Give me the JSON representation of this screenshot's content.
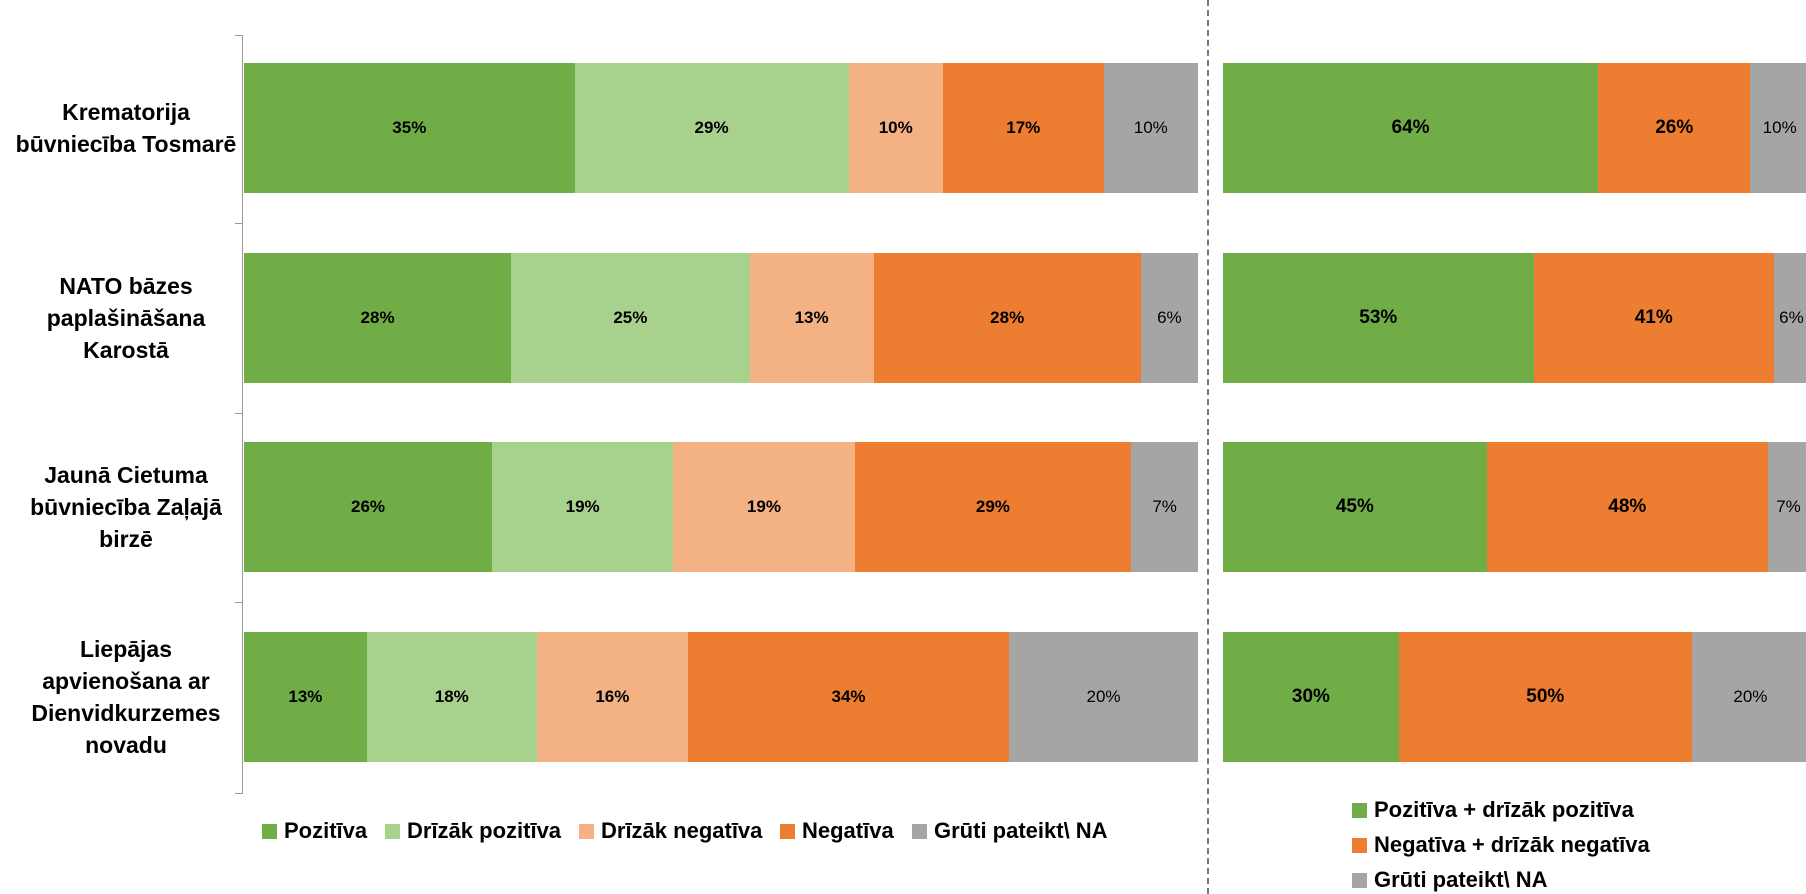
{
  "chart_data": [
    {
      "type": "bar",
      "orientation": "horizontal",
      "stacked": true,
      "legend": "bottom",
      "categories": [
        "Krematorija būvniecība Tosmarē",
        "NATO bāzes paplašināšana Karostā",
        "Jaunā Cietuma būvniecība Zaļajā birzē",
        "Liepājas apvienošana ar Dienvidkurzemes novadu"
      ],
      "series": [
        {
          "name": "Pozitīva",
          "color": "#70ad47",
          "values": [
            35,
            28,
            26,
            13
          ],
          "value_labels": [
            "35%",
            "28%",
            "26%",
            "13%"
          ]
        },
        {
          "name": "Drīzāk pozitīva",
          "color": "#a9d18e",
          "values": [
            29,
            25,
            19,
            18
          ],
          "value_labels": [
            "29%",
            "25%",
            "19%",
            "18%"
          ]
        },
        {
          "name": "Drīzāk negatīva",
          "color": "#f4b183",
          "values": [
            10,
            13,
            19,
            16
          ],
          "value_labels": [
            "10%",
            "13%",
            "19%",
            "16%"
          ]
        },
        {
          "name": "Negatīva",
          "color": "#ed7d31",
          "values": [
            17,
            28,
            29,
            34
          ],
          "value_labels": [
            "17%",
            "28%",
            "29%",
            "34%"
          ]
        },
        {
          "name": "Grūti pateikt\\ NA",
          "color": "#a5a5a5",
          "values": [
            10,
            6,
            7,
            20
          ],
          "value_labels": [
            "10%",
            "6%",
            "7%",
            "20%"
          ]
        }
      ]
    },
    {
      "type": "bar",
      "orientation": "horizontal",
      "stacked": true,
      "legend": "bottom",
      "series": [
        {
          "name": "Pozitīva + drīzāk pozitīva",
          "color": "#70ad47",
          "values": [
            64,
            53,
            45,
            30
          ],
          "value_labels": [
            "64%",
            "53%",
            "45%",
            "30%"
          ]
        },
        {
          "name": "Negatīva + drīzāk negatīva",
          "color": "#ed7d31",
          "values": [
            26,
            41,
            48,
            50
          ],
          "value_labels": [
            "26%",
            "41%",
            "48%",
            "50%"
          ]
        },
        {
          "name": "Grūti pateikt\\ NA",
          "color": "#a5a5a5",
          "values": [
            10,
            6,
            7,
            20
          ],
          "value_labels": [
            "10%",
            "6%",
            "7%",
            "20%"
          ]
        }
      ]
    }
  ]
}
